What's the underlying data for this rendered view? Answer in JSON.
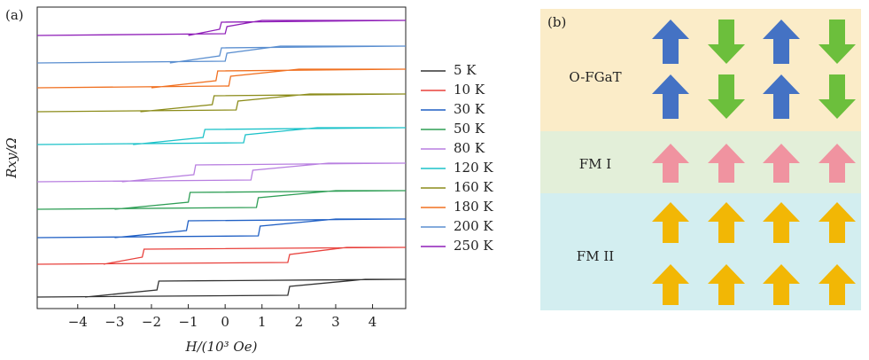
{
  "chart_data": {
    "type": "line",
    "panel_label": "(a)",
    "xlabel": "H/(10³ Oe)",
    "ylabel": "Rxy/Ω",
    "xlim": [
      -5.1,
      4.9
    ],
    "ylim": [
      0,
      34
    ],
    "xticks": [
      {
        "value": -4,
        "label": "−4"
      },
      {
        "value": -3,
        "label": "−3"
      },
      {
        "value": -2,
        "label": "−2"
      },
      {
        "value": -1,
        "label": "−1"
      },
      0,
      1,
      2,
      3,
      4
    ],
    "series": [
      {
        "name": "5 K",
        "color": "#333333",
        "x": [
          -5.1,
          1.7,
          1.75,
          3.8,
          4.9,
          -1.8,
          -1.85,
          -3.8
        ],
        "values": [
          1.3,
          1.5,
          2.5,
          3.3,
          3.3,
          3.1,
          2.1,
          1.3
        ]
      },
      {
        "name": "10 K",
        "color": "#e8413c",
        "x": [
          -5.1,
          1.7,
          1.75,
          3.3,
          4.9,
          -2.2,
          -2.25,
          -3.3
        ],
        "values": [
          5.0,
          5.2,
          6.1,
          6.9,
          6.9,
          6.7,
          5.8,
          5.0
        ]
      },
      {
        "name": "30 K",
        "color": "#1f5fc4",
        "x": [
          -5.1,
          0.9,
          0.95,
          3.0,
          4.9,
          -1.0,
          -1.05,
          -3.0
        ],
        "values": [
          8.0,
          8.2,
          9.3,
          10.1,
          10.1,
          9.9,
          8.8,
          8.0
        ]
      },
      {
        "name": "50 K",
        "color": "#2e9e55",
        "x": [
          -5.1,
          0.85,
          0.9,
          3.0,
          4.9,
          -0.95,
          -1.0,
          -3.0
        ],
        "values": [
          11.2,
          11.4,
          12.5,
          13.3,
          13.3,
          13.1,
          12.0,
          11.2
        ]
      },
      {
        "name": "80 K",
        "color": "#b87fe0",
        "x": [
          -5.1,
          0.7,
          0.75,
          2.8,
          4.9,
          -0.8,
          -0.85,
          -2.8
        ],
        "values": [
          14.3,
          14.5,
          15.6,
          16.4,
          16.4,
          16.2,
          15.1,
          14.3
        ]
      },
      {
        "name": "120 K",
        "color": "#1cc2c9",
        "x": [
          -5.1,
          0.5,
          0.55,
          2.5,
          4.9,
          -0.55,
          -0.6,
          -2.5
        ],
        "values": [
          18.5,
          18.7,
          19.6,
          20.4,
          20.4,
          20.2,
          19.3,
          18.5
        ]
      },
      {
        "name": "160 K",
        "color": "#8c8c1a",
        "x": [
          -5.1,
          0.3,
          0.35,
          2.3,
          4.9,
          -0.3,
          -0.35,
          -2.3
        ],
        "values": [
          22.2,
          22.4,
          23.4,
          24.2,
          24.2,
          24.0,
          23.0,
          22.2
        ]
      },
      {
        "name": "180 K",
        "color": "#f07020",
        "x": [
          -5.1,
          0.1,
          0.15,
          2.0,
          4.9,
          -0.2,
          -0.25,
          -2.0
        ],
        "values": [
          24.9,
          25.1,
          26.2,
          27.0,
          27.0,
          26.8,
          25.7,
          24.9
        ]
      },
      {
        "name": "200 K",
        "color": "#5b8fd0",
        "x": [
          -5.1,
          0.0,
          0.05,
          1.5,
          4.9,
          -0.1,
          -0.15,
          -1.5
        ],
        "values": [
          27.7,
          27.9,
          28.8,
          29.6,
          29.6,
          29.4,
          28.5,
          27.7
        ]
      },
      {
        "name": "250 K",
        "color": "#8f1fb8",
        "x": [
          -5.1,
          0.0,
          0.05,
          1.0,
          4.9,
          -0.1,
          -0.15,
          -1.0
        ],
        "values": [
          30.8,
          31.0,
          31.8,
          32.5,
          32.5,
          32.3,
          31.5,
          30.8
        ]
      }
    ]
  },
  "diagram": {
    "panel_label": "(b)",
    "rows": [
      {
        "name": "O-FGaT"
      },
      {
        "name": "FM I"
      },
      {
        "name": "FM II"
      }
    ]
  }
}
